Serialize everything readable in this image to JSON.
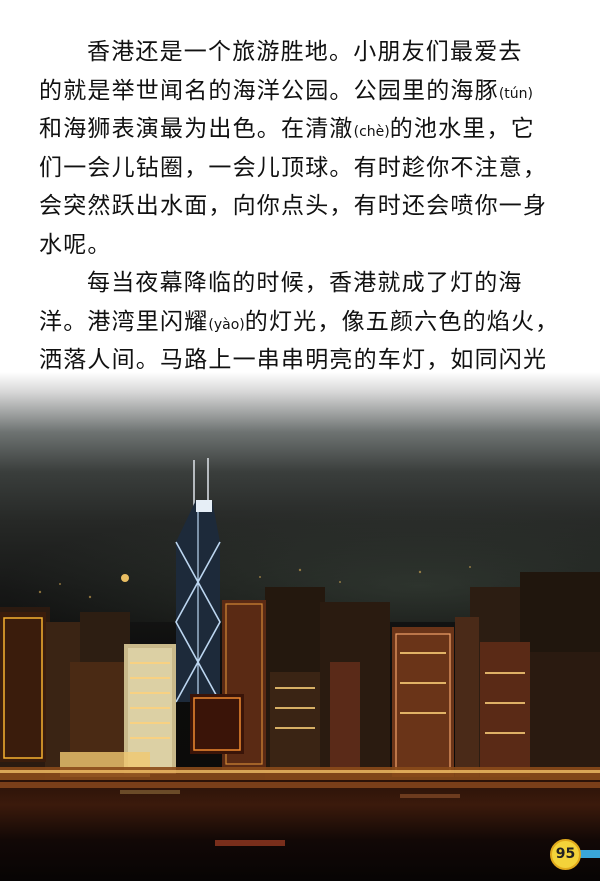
{
  "paragraphs": [
    {
      "lines": [
        {
          "segments": [
            {
              "text": "香港还是一个旅游胜地。小朋友们最爱去"
            }
          ]
        },
        {
          "segments": [
            {
              "text": "的就是举世闻名的海洋公园。公园里的海豚"
            },
            {
              "text": "(tún)",
              "pinyin": true
            }
          ]
        },
        {
          "segments": [
            {
              "text": "和海狮表演最为出色。在清澈"
            },
            {
              "text": "(chè)",
              "pinyin": true
            },
            {
              "text": "的池水里，它"
            }
          ]
        },
        {
          "segments": [
            {
              "text": "们一会儿钻圈，一会儿顶球。有时趁你不注意，"
            }
          ]
        },
        {
          "segments": [
            {
              "text": "会突然跃出水面，向你点头，有时还会喷你一身"
            }
          ]
        },
        {
          "segments": [
            {
              "text": "水呢。"
            }
          ]
        }
      ]
    },
    {
      "lines": [
        {
          "segments": [
            {
              "text": "每当夜幕降临的时候，香港就成了灯的海"
            }
          ]
        },
        {
          "segments": [
            {
              "text": "洋。港湾里闪耀"
            },
            {
              "text": "(yào)",
              "pinyin": true
            },
            {
              "text": "的灯光，像五颜六色的焰火，"
            }
          ]
        },
        {
          "segments": [
            {
              "text": "洒落人间。马路上一串串明亮的车灯，如同闪光"
            }
          ]
        }
      ]
    }
  ],
  "page_number": "95",
  "colors": {
    "text": "#111111",
    "page_badge": "#f3d33a",
    "page_tab": "#3aa6d8"
  }
}
